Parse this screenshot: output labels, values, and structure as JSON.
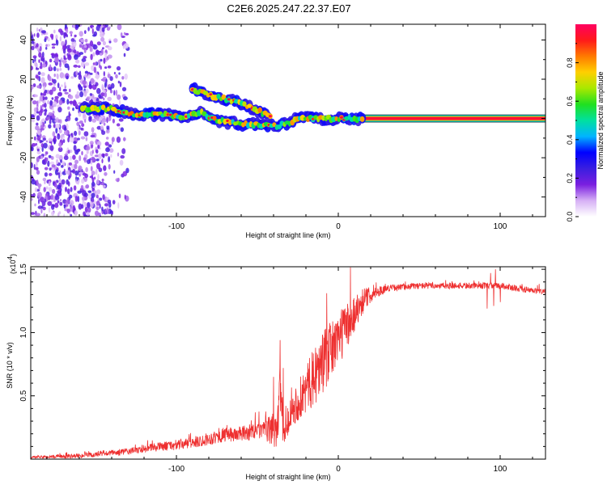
{
  "page": {
    "title": "C2E6.2025.247.22.37.E07"
  },
  "colors": {
    "snr_line": "#ee3030",
    "frame": "#000000",
    "colorbar": [
      "#ffffff",
      "#d6b0f5",
      "#7a1fe0",
      "#3a1ee0",
      "#0000ff",
      "#00b4ff",
      "#00e0a0",
      "#20e020",
      "#a8e800",
      "#ffd000",
      "#ff7a00",
      "#ff1a1a",
      "#ff0060"
    ]
  },
  "chart_data": [
    {
      "type": "heatmap",
      "xlabel": "Height of straight line (km)",
      "ylabel": "Frequency (Hz)",
      "xlim": [
        -190,
        128
      ],
      "ylim": [
        -50,
        48
      ],
      "xticks": [
        -100,
        0,
        100
      ],
      "xtick_labels": [
        "-100",
        "0",
        "100"
      ],
      "yticks": [
        -40,
        -20,
        0,
        20,
        40
      ],
      "ytick_labels": [
        "-40",
        "-20",
        "0",
        "20",
        "40"
      ],
      "colorbar": {
        "label": "Normalized spectral amplitude",
        "range": [
          0,
          1
        ],
        "ticks": [
          0.0,
          0.2,
          0.4,
          0.6,
          0.8
        ],
        "tick_labels": [
          "0.0",
          "0.2",
          "0.4",
          "0.6",
          "0.8"
        ]
      },
      "features": {
        "noise_region_x": [
          -190,
          -130
        ],
        "noise_amplitude": 0.2,
        "main_trace": [
          [
            -158,
            5
          ],
          [
            -140,
            5
          ],
          [
            -125,
            2
          ],
          [
            -110,
            2
          ],
          [
            -95,
            1
          ],
          [
            -85,
            3
          ],
          [
            -75,
            -1
          ],
          [
            -60,
            -3
          ],
          [
            -50,
            -3
          ],
          [
            -40,
            -4
          ],
          [
            -33,
            -3
          ],
          [
            -25,
            0
          ],
          [
            -15,
            0
          ],
          [
            -5,
            0
          ],
          [
            5,
            0
          ],
          [
            15,
            0
          ]
        ],
        "upper_branch": [
          [
            -90,
            15
          ],
          [
            -80,
            12
          ],
          [
            -70,
            10
          ],
          [
            -60,
            8
          ],
          [
            -50,
            4
          ],
          [
            -42,
            1
          ]
        ],
        "steady_line_x": [
          15,
          128
        ],
        "steady_line_y": 0,
        "steady_line_amplitude": 0.95
      }
    },
    {
      "type": "line",
      "xlabel": "Height of straight line (km)",
      "ylabel": "SNR (10 * v/v)",
      "y_multiplier_label": "(x10",
      "y_multiplier_exp": "4",
      "y_multiplier_close": ")",
      "xlim": [
        -190,
        128
      ],
      "ylim": [
        0,
        15200
      ],
      "xticks": [
        -100,
        0,
        100
      ],
      "xtick_labels": [
        "-100",
        "0",
        "100"
      ],
      "yticks": [
        5000,
        10000,
        15000
      ],
      "ytick_labels": [
        "0.5",
        "1.0",
        "1.5"
      ],
      "series": [
        {
          "name": "SNR",
          "envelope": [
            [
              -190,
              150
            ],
            [
              -170,
              200
            ],
            [
              -150,
              350
            ],
            [
              -130,
              600
            ],
            [
              -120,
              800
            ],
            [
              -110,
              1000
            ],
            [
              -100,
              1100
            ],
            [
              -90,
              1300
            ],
            [
              -80,
              1600
            ],
            [
              -70,
              1900
            ],
            [
              -60,
              2000
            ],
            [
              -50,
              2200
            ],
            [
              -42,
              2300
            ],
            [
              -38,
              2600
            ],
            [
              -36,
              5000
            ],
            [
              -33,
              1500
            ],
            [
              -30,
              3800
            ],
            [
              -25,
              4500
            ],
            [
              -20,
              5500
            ],
            [
              -15,
              6500
            ],
            [
              -10,
              7500
            ],
            [
              -5,
              8500
            ],
            [
              0,
              9500
            ],
            [
              5,
              10500
            ],
            [
              10,
              11500
            ],
            [
              15,
              12500
            ],
            [
              20,
              13000
            ],
            [
              30,
              13500
            ],
            [
              50,
              13700
            ],
            [
              80,
              13700
            ],
            [
              100,
              13700
            ],
            [
              120,
              13300
            ],
            [
              128,
              13200
            ]
          ],
          "noise_amplitude": [
            [
              -190,
              100
            ],
            [
              -120,
              300
            ],
            [
              -80,
              500
            ],
            [
              -45,
              700
            ],
            [
              -38,
              2000
            ],
            [
              -30,
              1200
            ],
            [
              -20,
              2000
            ],
            [
              -10,
              2500
            ],
            [
              5,
              2000
            ],
            [
              20,
              600
            ],
            [
              30,
              250
            ],
            [
              128,
              250
            ]
          ],
          "spikes": [
            [
              -40,
              6500
            ],
            [
              -36,
              9400
            ],
            [
              -34,
              7200
            ],
            [
              -14,
              8800
            ],
            [
              -9,
              9600
            ],
            [
              -5,
              10000
            ],
            [
              0,
              10300
            ],
            [
              8,
              10200
            ],
            [
              94,
              14700
            ],
            [
              97,
              15000
            ],
            [
              92,
              11900
            ],
            [
              96,
              12100
            ],
            [
              100,
              12400
            ]
          ]
        }
      ]
    }
  ]
}
